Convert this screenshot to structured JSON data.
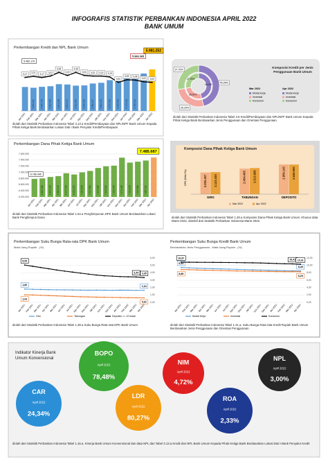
{
  "header": {
    "title": "INFOGRAFIS STATISTIK PERBANKAN INDONESIA APRIL 2022",
    "subtitle": "BANK UMUM"
  },
  "chart_data": [
    {
      "type": "combo",
      "title": "Perkembangan Kredit dan NPL Bank Umum",
      "categories": [
        "Jan 2021",
        "Feb 2021",
        "Mar 2021",
        "Apr 2021",
        "Mei 2021",
        "Jun 2021",
        "Jul 2021",
        "Agu 2021",
        "Sep 2021",
        "Okt 2021",
        "Nov 2021",
        "Des 2021",
        "Jan 2022",
        "Feb 2022",
        "Mar 2022",
        "Apr 2022"
      ],
      "series": [
        {
          "type": "bar",
          "colors": [
            "#5b9bd5",
            "#5b9bd5",
            "#5b9bd5",
            "#5b9bd5",
            "#5b9bd5",
            "#5b9bd5",
            "#5b9bd5",
            "#5b9bd5",
            "#5b9bd5",
            "#5b9bd5",
            "#5b9bd5",
            "#5b9bd5",
            "#5b9bd5",
            "#5b9bd5",
            "#5b9bd5",
            "#ffc000"
          ],
          "values": [
            5482179,
            5460112,
            5486743,
            5503461,
            5561208,
            5552170,
            5519642,
            5526033,
            5580417,
            5600125,
            5675290,
            5768581,
            5733146,
            5788314,
            5863365,
            5981252
          ],
          "value_labels": [
            "5.482.179",
            "5.460.112",
            "5.486.743",
            "5.503.461",
            "5.561.208",
            "5.552.170",
            "5.519.642",
            "5.526.033",
            "5.580.417",
            "5.600.125",
            "5.675.290",
            "5.768.581",
            "5.733.146",
            "5.788.314",
            "5.863.365",
            "5.981.252"
          ]
        },
        {
          "type": "line",
          "axis": "y2",
          "color": "#000000",
          "values": [
            3.17,
            3.21,
            3.17,
            3.22,
            3.35,
            3.24,
            3.35,
            3.24,
            3.22,
            3.22,
            3.19,
            3.0,
            3.09,
            3.08,
            3.02,
            3.0
          ],
          "value_labels": [
            "3,17",
            "3,21",
            "3,17",
            "3,22",
            "3,35",
            "3,24",
            "3,35",
            "3,24",
            "3,22",
            "3,22",
            "3,19",
            "3,00",
            "3,09",
            "3,08",
            "3,02",
            "3,00"
          ]
        }
      ],
      "ylim": [
        4800000,
        6100000
      ],
      "y2lim": [
        2.0,
        3.6
      ]
    },
    {
      "type": "donut",
      "title": "Komposisi Kredit per Jenis Penggunaan Bank Umum",
      "categories": [
        "Modal kerja",
        "Investasi",
        "Konsumsi"
      ],
      "colors": [
        "#8e7cc3",
        "#f4a6a0",
        "#a9d18e"
      ],
      "series": [
        {
          "name": "Mar 2022",
          "values": [
            46.24,
            26.01,
            27.75
          ],
          "value_labels": [
            "46,24%",
            "26,01%",
            "27,75%"
          ]
        },
        {
          "name": "Apr 2022",
          "values": [
            45.99,
            26.25,
            27.76
          ],
          "value_labels": [
            "45,99%",
            "26,25%",
            "27,76%"
          ]
        }
      ]
    },
    {
      "type": "bar",
      "title": "Perkembangan Dana Pihak Ketiga Bank Umum",
      "categories": [
        "Jan 2021",
        "Feb 2021",
        "Mar 2021",
        "Apr 2021",
        "Mei 2021",
        "Jun 2021",
        "Jul 2021",
        "Agu 2021",
        "Sep 2021",
        "Okt 2021",
        "Nov 2021",
        "Des 2021",
        "Jan 2022",
        "Feb 2022",
        "Mar 2022",
        "Apr 2022"
      ],
      "values": [
        6786495,
        6803260,
        6851413,
        6880122,
        6972451,
        6932207,
        7001553,
        7047864,
        7143820,
        7198612,
        7220045,
        7479462,
        7319120,
        7349884,
        7385512,
        7485687
      ],
      "value_labels": [
        "6.786.495",
        "6.803.260",
        "6.851.413",
        "6.880.122",
        "6.972.451",
        "6.932.207",
        "7.001.553",
        "7.047.864",
        "7.143.820",
        "7.198.612",
        "7.220.045",
        "7.479.462",
        "7.319.120",
        "7.349.884",
        "7.385.512",
        "7.485.687"
      ],
      "colors": [
        "#70ad47",
        "#70ad47",
        "#70ad47",
        "#70ad47",
        "#70ad47",
        "#70ad47",
        "#70ad47",
        "#70ad47",
        "#70ad47",
        "#70ad47",
        "#70ad47",
        "#70ad47",
        "#70ad47",
        "#70ad47",
        "#70ad47",
        "#f4a460"
      ],
      "ylim": [
        6200000,
        7600000
      ],
      "yticks": [
        {
          "value": 6200000,
          "label": "6.200.000"
        },
        {
          "value": 6400000,
          "label": "6.400.000"
        },
        {
          "value": 6600000,
          "label": "6.600.000"
        },
        {
          "value": 6800000,
          "label": "6.800.000"
        },
        {
          "value": 7000000,
          "label": "7.000.000"
        },
        {
          "value": 7200000,
          "label": "7.200.000"
        },
        {
          "value": 7400000,
          "label": "7.400.000"
        },
        {
          "value": 7600000,
          "label": "7.600.000"
        }
      ],
      "grid": true
    },
    {
      "type": "bar",
      "title": "Komposisi Dana Pihak Ketiga Bank Umum",
      "ylabel": "DPK (Miliar Rp)",
      "categories": [
        "GIRO",
        "TABUNGAN",
        "DEPOSITO"
      ],
      "series": [
        {
          "name": "Mar 2022",
          "color": "#f4b183",
          "values": [
            2090457,
            2454495,
            2859143
          ],
          "value_labels": [
            "2.090.457",
            "2.454.495",
            "2.859.143"
          ]
        },
        {
          "name": "Apr 2022",
          "color": "#e9a23b",
          "values": [
            2123445,
            2513686,
            2848590
          ],
          "value_labels": [
            "2.123.445",
            "2.513.686",
            "2.848.590"
          ]
        }
      ],
      "ylim": [
        0,
        3200000
      ]
    },
    {
      "type": "line",
      "title": "Perkembangan Suku Bunga Rata-rata DPK Bank Umum",
      "subtitle": "Mata Uang Rupiah - (%)",
      "categories": [
        "Jan 2021",
        "Feb 2021",
        "Mar 2021",
        "Apr 2021",
        "Mei 2021",
        "Jun 2021",
        "Jul 2021",
        "Agu 2021",
        "Sep 2021",
        "Okt 2021",
        "Nov 2021",
        "Des 2021",
        "Jan 2022",
        "Feb 2022",
        "Mar 2022",
        "Apr 2022"
      ],
      "series": [
        {
          "name": "Giro",
          "color": "#5b9bd5",
          "values": [
            1.8,
            1.77,
            1.74,
            1.72,
            1.7,
            1.69,
            1.68,
            1.66,
            1.65,
            1.66,
            1.65,
            1.64,
            1.66,
            1.65,
            1.63,
            1.64
          ],
          "value_labels": [
            "1,80",
            null,
            null,
            null,
            null,
            null,
            null,
            null,
            null,
            null,
            null,
            null,
            null,
            null,
            null,
            "1,64"
          ]
        },
        {
          "name": "Tabungan",
          "color": "#ed7d31",
          "values": [
            1.03,
            1.0,
            0.96,
            0.92,
            0.88,
            0.84,
            0.8,
            0.76,
            0.74,
            0.71,
            0.7,
            0.68,
            0.66,
            0.64,
            0.63,
            0.62
          ],
          "value_labels": [
            "1,03",
            null,
            null,
            null,
            null,
            null,
            null,
            null,
            null,
            null,
            null,
            null,
            null,
            null,
            null,
            "0,62"
          ]
        },
        {
          "name": "Deposito <= 12 bulan",
          "color": "#000000",
          "values": [
            5.05,
            4.88,
            4.72,
            4.55,
            4.38,
            4.23,
            4.1,
            3.96,
            3.82,
            3.7,
            3.6,
            3.55,
            3.49,
            3.46,
            3.44,
            3.35
          ],
          "value_labels": [
            "5,05",
            null,
            null,
            null,
            null,
            null,
            null,
            null,
            null,
            null,
            null,
            null,
            null,
            null,
            "3,44",
            "3,35"
          ]
        }
      ],
      "ylim": [
        0,
        6
      ],
      "yticks": [
        {
          "value": 0,
          "label": "0,00"
        },
        {
          "value": 1,
          "label": "1,00"
        },
        {
          "value": 2,
          "label": "2,00"
        },
        {
          "value": 3,
          "label": "3,00"
        },
        {
          "value": 4,
          "label": "4,00"
        },
        {
          "value": 5,
          "label": "5,00"
        },
        {
          "value": 6,
          "label": "6,00"
        }
      ],
      "grid": true
    },
    {
      "type": "line",
      "title": "Perkembangan Suku Bunga Kredit Bank Umum",
      "subtitle": "Berdasarkan Jenis Penggunaan - Mata Uang Rupiah - (%)",
      "categories": [
        "Jan 2021",
        "Feb 2021",
        "Mar 2021",
        "Apr 2021",
        "Mei 2021",
        "Jun 2021",
        "Jul 2021",
        "Agu 2021",
        "Sep 2021",
        "Okt 2021",
        "Nov 2021",
        "Des 2021",
        "Jan 2022",
        "Feb 2022",
        "Mar 2022",
        "Apr 2022"
      ],
      "series": [
        {
          "name": "Modal Kerja",
          "color": "#5b9bd5",
          "values": [
            9.44,
            9.35,
            9.26,
            9.18,
            9.12,
            9.05,
            9.0,
            8.93,
            8.86,
            8.8,
            8.74,
            8.69,
            8.63,
            8.58,
            8.53,
            8.49
          ],
          "value_labels": [
            "9,44",
            null,
            null,
            null,
            null,
            null,
            null,
            null,
            null,
            null,
            null,
            null,
            null,
            null,
            null,
            "8,49"
          ]
        },
        {
          "name": "Investasi",
          "color": "#ed7d31",
          "values": [
            8.88,
            8.84,
            8.78,
            8.71,
            8.66,
            8.6,
            8.55,
            8.5,
            8.46,
            8.42,
            8.38,
            8.35,
            8.33,
            8.31,
            8.3,
            8.29
          ],
          "value_labels": [
            "8,88",
            null,
            null,
            null,
            null,
            null,
            null,
            null,
            null,
            null,
            null,
            null,
            null,
            null,
            null,
            "8,29"
          ]
        },
        {
          "name": "Konsumsi",
          "color": "#000000",
          "values": [
            10.87,
            10.86,
            10.84,
            10.83,
            10.82,
            10.8,
            10.78,
            10.76,
            10.73,
            10.7,
            10.66,
            10.58,
            10.52,
            10.45,
            10.41,
            10.31
          ],
          "value_labels": [
            "10,87",
            null,
            null,
            null,
            null,
            null,
            null,
            null,
            null,
            null,
            null,
            null,
            null,
            null,
            "10,41",
            "10,31"
          ]
        }
      ],
      "ylim": [
        0,
        12
      ],
      "yticks": [
        {
          "value": 0,
          "label": "0,00"
        },
        {
          "value": 2,
          "label": "2,00"
        },
        {
          "value": 4,
          "label": "4,00"
        },
        {
          "value": 6,
          "label": "6,00"
        },
        {
          "value": 8,
          "label": "8,00"
        },
        {
          "value": 10,
          "label": "10,00"
        },
        {
          "value": 12,
          "label": "12,00"
        }
      ],
      "grid": true
    }
  ],
  "kpi": {
    "title": "Indikator Kinerja Bank Umum Konvensional",
    "items": [
      {
        "name": "BOPO",
        "period": "April 2022",
        "value": "78,48%"
      },
      {
        "name": "NIM",
        "period": "April 2022",
        "value": "4,72%"
      },
      {
        "name": "NPL",
        "period": "April 2022",
        "value": "3,00%"
      },
      {
        "name": "CAR",
        "period": "April 2022",
        "value": "24,34%"
      },
      {
        "name": "LDR",
        "period": "April 2022",
        "value": "80,27%"
      },
      {
        "name": "ROA",
        "period": "April 2022",
        "value": "2,33%"
      }
    ]
  },
  "notes": [
    "diolah dari Statistik Perbankan Indonesia Tabel 3.13.a Kredit/Pembiayaan dan NPL/NPF Bank Umum Kepada Pihak Ketiga Bank Berdasarkan Lokasi Dati I Bank Penyalur Kredit/Pembiayaan",
    "diolah dari Statistik Perbankan Indonesia Tabel 3.5 Kredit/Pembiayaan dan NPL/NPF Bank Umum Kepada Pihak Ketiga Bank Berdasarkan Jenis Penggunaan dan Orientasi Penggunaan.",
    "diolah dari Statistik Perbankan Indonesia Tabel 1.54.a Penghimpunan DPK Bank Umum Berdasarkan Lokasi Bank Penghimpun Dana",
    "diolah dari Statistik Perbankan Indonesia Tabel 1.28.a Komposisi Dana Pihak Ketiga Bank Umum. Khusus data Maret 2022, diambil dari Statistik Perbankan Indonesia Maret 2022.",
    "diolah dari Statistik Perbankan Indonesia Tabel 1.38.a Suku Bunga Rata-rata DPK Bank Umum",
    "diolah dari Statistik Perbankan Indonesia Tabel 1.41.a. Suku Bunga Rata-rata Kredit Rupiah Bank Umum Berdasarkan Jenis Penggunaan dan Orientasi Penggunaan.",
    "diolah dari Statistik Perbankan Indonesia Tabel 1.16.a. Kinerja Bank Umum Konvensional dan data NPL dari Tabel 3.13.a Kredit dan NPL Bank Umum Kepada Pihak Ketiga Bank Berdasarkan Lokasi Dati I Bank Penyalur Kredit"
  ]
}
